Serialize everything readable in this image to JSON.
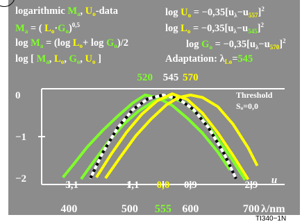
{
  "header": {
    "line1_left": [
      "logarithmic ",
      "M",
      "a",
      ", ",
      "U",
      "o",
      "-data"
    ],
    "line1_right": [
      "log ",
      "U",
      "o",
      " = −0,35[",
      "u",
      "λ",
      "−",
      "u",
      "557",
      "]",
      "2"
    ],
    "line2_left": [
      "M",
      "a",
      " = ( ",
      "L",
      "o",
      "·",
      "G",
      "o",
      ")",
      "0,5"
    ],
    "line2_right": [
      "log ",
      "L",
      "o",
      " = −0,35[",
      "u",
      "λ",
      "−",
      "u",
      "545",
      "]",
      "2"
    ],
    "line3_left": [
      "log ",
      "M",
      "a",
      " = (log ",
      "L",
      "o",
      "+ log ",
      "G",
      "o",
      ")/2"
    ],
    "line3_right": [
      "log ",
      "G",
      "o",
      " = −0,35[",
      "u",
      "λ",
      "−",
      "u",
      "570",
      "]",
      "2"
    ],
    "line4_left": [
      "log [ ",
      "M",
      "a",
      ", ",
      "L",
      "o",
      ", ",
      "G",
      "o",
      ", ",
      "U",
      "o",
      " ]"
    ],
    "line4_right": [
      "Adaptation: λ",
      "L",
      "o",
      "=",
      "545"
    ]
  },
  "footer_code": "TI340−1N",
  "chart_data": {
    "type": "line",
    "x_label": "u",
    "x_ticks_u": [
      "−3,1",
      "−1,1",
      "0,0",
      "0,9",
      "2,9"
    ],
    "x_ticks_u_values": [
      -3.1,
      -1.1,
      0.0,
      0.9,
      2.9
    ],
    "x_ticks_nm": [
      "400",
      "500",
      "555",
      "600",
      "700"
    ],
    "x_ticks_nm_u": [
      -3.1,
      -1.1,
      0.0,
      0.9,
      2.9
    ],
    "x_unit_nm": "λ/nm",
    "y_ticks": [
      "0",
      "−1",
      "−2"
    ],
    "y_tick_values": [
      0,
      -1,
      -2
    ],
    "ylim": [
      -2.15,
      0.15
    ],
    "xlim": [
      -4.0,
      4.0
    ],
    "top_labels": [
      {
        "text": "520",
        "u": -0.6,
        "color": "#7fff2a"
      },
      {
        "text": "545",
        "u": 0.25,
        "color": "#ffffff"
      },
      {
        "text": "570",
        "u": 0.9,
        "color": "#ffff00"
      }
    ],
    "annotation": {
      "line1": "Threshold",
      "line2": "Sₐ=0,0"
    },
    "series": [
      {
        "peak_u": -0.6,
        "color": "#7fff2a",
        "dash": "",
        "points_u": [
          -3.3,
          -3.0,
          -2.5,
          -2.0,
          -1.5,
          -1.0,
          -0.6,
          -0.2,
          0.3,
          0.8,
          1.3,
          1.8,
          2.2
        ],
        "points_y": [
          -1.98,
          -1.71,
          -1.25,
          -0.86,
          -0.51,
          -0.19,
          0.0,
          -0.06,
          -0.25,
          -0.56,
          -0.92,
          -1.37,
          -1.8
        ]
      },
      {
        "peak_u": -0.3,
        "color": "#7fff2a",
        "dash": "",
        "points_u": [
          -2.7,
          -2.3,
          -1.8,
          -1.3,
          -0.8,
          -0.3,
          0.2,
          0.7,
          1.2,
          1.7,
          2.2,
          2.7
        ],
        "points_y": [
          -2.02,
          -1.61,
          -1.12,
          -0.7,
          -0.38,
          -0.15,
          -0.05,
          -0.18,
          -0.5,
          -0.95,
          -1.47,
          -2.04
        ]
      },
      {
        "peak_u": 0.0,
        "color": "#000000",
        "dash": "6,4",
        "points_u": [
          -2.4,
          -2.0,
          -1.5,
          -1.0,
          -0.5,
          0.0,
          0.5,
          1.0,
          1.5,
          2.0,
          2.4
        ],
        "points_y": [
          -2.01,
          -1.4,
          -0.79,
          -0.35,
          -0.09,
          0.0,
          -0.09,
          -0.35,
          -0.79,
          -1.4,
          -2.01
        ]
      },
      {
        "peak_u": 0.0,
        "color": "#ffffff",
        "dash": "6,4",
        "dashoffset": 5,
        "points_u": [
          -2.4,
          -2.0,
          -1.5,
          -1.0,
          -0.5,
          0.0,
          0.5,
          1.0,
          1.5,
          2.0,
          2.4
        ],
        "points_y": [
          -2.01,
          -1.4,
          -0.79,
          -0.35,
          -0.09,
          0.0,
          -0.09,
          -0.35,
          -0.79,
          -1.4,
          -2.01
        ]
      },
      {
        "peak_u": 0.3,
        "color": "#ffff00",
        "dash": "",
        "points_u": [
          -2.2,
          -1.7,
          -1.2,
          -0.7,
          -0.2,
          0.3,
          0.8,
          1.3,
          1.8,
          2.3,
          2.8
        ],
        "points_y": [
          -1.98,
          -1.41,
          -0.89,
          -0.46,
          -0.14,
          0.03,
          -0.11,
          -0.44,
          -0.91,
          -1.45,
          -2.03
        ]
      },
      {
        "peak_u": 0.9,
        "color": "#ffff00",
        "dash": "",
        "points_u": [
          -1.9,
          -1.4,
          -0.9,
          -0.4,
          0.1,
          0.5,
          0.9,
          1.3,
          1.8,
          2.3,
          2.8,
          3.1
        ],
        "points_y": [
          -2.0,
          -1.48,
          -0.98,
          -0.58,
          -0.24,
          -0.06,
          0.0,
          -0.06,
          -0.28,
          -0.7,
          -1.27,
          -1.7
        ]
      }
    ]
  }
}
